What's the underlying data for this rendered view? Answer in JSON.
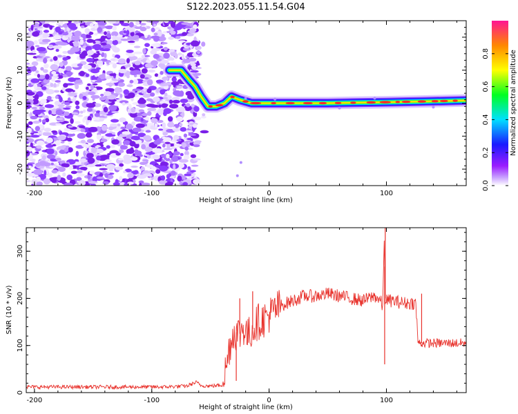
{
  "title": "S122.2023.055.11.54.G04",
  "chart_data": [
    {
      "type": "heatmap",
      "xlabel": "Height of straight line (km)",
      "ylabel": "Frequency (Hz)",
      "xlim": [
        -207,
        168
      ],
      "ylim": [
        -25,
        25
      ],
      "xticks": [
        -200,
        -100,
        0,
        100
      ],
      "xtick_labels": [
        "-200",
        "-100",
        "0",
        "100"
      ],
      "yticks": [
        -20,
        -10,
        0,
        10,
        20
      ],
      "ytick_labels": [
        "-20",
        "-10",
        "0",
        "10",
        "20"
      ],
      "noise_region_x": [
        -207,
        -60
      ],
      "trace_points": [
        {
          "x": -85,
          "y": 10
        },
        {
          "x": -75,
          "y": 10
        },
        {
          "x": -68,
          "y": 7
        },
        {
          "x": -63,
          "y": 5
        },
        {
          "x": -58,
          "y": 2
        },
        {
          "x": -52,
          "y": -1
        },
        {
          "x": -45,
          "y": -1
        },
        {
          "x": -38,
          "y": 0
        },
        {
          "x": -32,
          "y": 2
        },
        {
          "x": -25,
          "y": 1
        },
        {
          "x": -15,
          "y": 0
        },
        {
          "x": 0,
          "y": 0
        },
        {
          "x": 50,
          "y": 0
        },
        {
          "x": 100,
          "y": 0.3
        },
        {
          "x": 130,
          "y": 0.5
        },
        {
          "x": 168,
          "y": 0.8
        }
      ],
      "colorbar": {
        "label": "Normalized spectral amplitude",
        "range": [
          0.0,
          1.0
        ],
        "ticks": [
          0.0,
          0.2,
          0.4,
          0.6,
          0.8
        ],
        "tick_labels": [
          "0.0",
          "0.2",
          "0.4",
          "0.6",
          "0.8"
        ],
        "colors": [
          "#ffffff",
          "#9a1cff",
          "#1a1aff",
          "#00e0ff",
          "#00ff22",
          "#ffff00",
          "#ff8800",
          "#ff1493"
        ]
      }
    },
    {
      "type": "line",
      "xlabel": "Height of straight line (km)",
      "ylabel": "SNR (10 * v/v)",
      "xlim": [
        -207,
        168
      ],
      "ylim": [
        0,
        350
      ],
      "xticks": [
        -200,
        -100,
        0,
        100
      ],
      "xtick_labels": [
        "-200",
        "-100",
        "0",
        "100"
      ],
      "yticks": [
        0,
        100,
        200,
        300
      ],
      "ytick_labels": [
        "0",
        "100",
        "200",
        "300"
      ],
      "color": "#e8302a",
      "series": [
        {
          "x": [
            -207,
            -180,
            -150,
            -120,
            -90,
            -70,
            -62,
            -58,
            -50,
            -40,
            -36,
            -34,
            -30,
            -25,
            -22,
            -18,
            -10,
            -5,
            0,
            10,
            20,
            30,
            40,
            50,
            60,
            70,
            80,
            90,
            95,
            97,
            98,
            99,
            101,
            105,
            115,
            125,
            127,
            130,
            145,
            168
          ],
          "y": [
            12,
            12,
            12,
            12,
            12,
            14,
            22,
            15,
            14,
            16,
            60,
            95,
            130,
            125,
            140,
            120,
            150,
            155,
            165,
            185,
            195,
            205,
            205,
            210,
            205,
            200,
            195,
            205,
            195,
            180,
            335,
            200,
            195,
            195,
            190,
            190,
            105,
            105,
            105,
            105
          ],
          "spikes": [
            {
              "x": -25,
              "y": 200
            },
            {
              "x": -14,
              "y": 215
            },
            {
              "x": -28,
              "y": 25
            },
            {
              "x": 99,
              "y": 350
            },
            {
              "x": 98.5,
              "y": 60
            },
            {
              "x": 130,
              "y": 210
            }
          ]
        }
      ]
    }
  ]
}
